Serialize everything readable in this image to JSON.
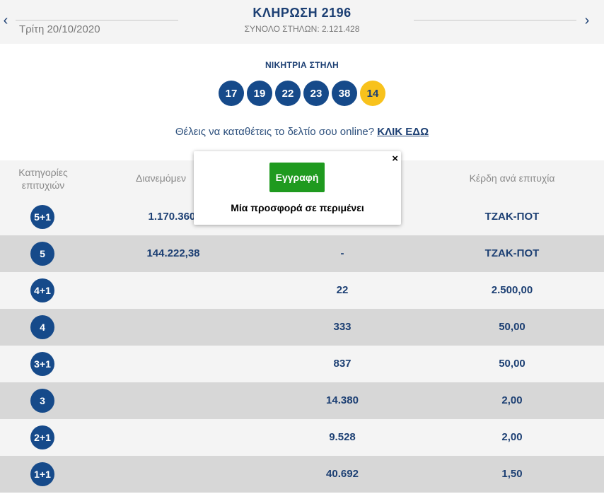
{
  "header": {
    "prev_icon": "chevron-left-icon",
    "next_icon": "chevron-right-icon",
    "date": "Τρίτη 20/10/2020",
    "draw_title": "ΚΛΗΡΩΣΗ 2196",
    "total_columns": "ΣΥΝΟΛΟ ΣΤΗΛΩΝ: 2.121.428"
  },
  "winning": {
    "label": "ΝΙΚΗΤΡΙΑ ΣΤΗΛΗ",
    "numbers": [
      "17",
      "19",
      "22",
      "23",
      "38"
    ],
    "joker": "14"
  },
  "online": {
    "text": "Θέλεις να καταθέτεις το δελτίο σου online?",
    "link": "ΚΛΙΚ ΕΔΩ"
  },
  "table": {
    "headers": {
      "categories": "Κατηγορίες επιτυχιών",
      "distributed": "Διανεμόμεν",
      "per_win": "Κέρδη ανά επιτυχία"
    },
    "rows": [
      {
        "cat": "5+1",
        "distributed": "1.170.360,",
        "winners": "",
        "prize": "ΤΖΑΚ-ΠΟΤ"
      },
      {
        "cat": "5",
        "distributed": "144.222,38",
        "winners": "-",
        "prize": "ΤΖΑΚ-ΠΟΤ"
      },
      {
        "cat": "4+1",
        "distributed": "",
        "winners": "22",
        "prize": "2.500,00"
      },
      {
        "cat": "4",
        "distributed": "",
        "winners": "333",
        "prize": "50,00"
      },
      {
        "cat": "3+1",
        "distributed": "",
        "winners": "837",
        "prize": "50,00"
      },
      {
        "cat": "3",
        "distributed": "",
        "winners": "14.380",
        "prize": "2,00"
      },
      {
        "cat": "2+1",
        "distributed": "",
        "winners": "9.528",
        "prize": "2,00"
      },
      {
        "cat": "1+1",
        "distributed": "",
        "winners": "40.692",
        "prize": "1,50"
      }
    ]
  },
  "popup": {
    "close": "×",
    "button": "Εγγραφή",
    "text": "Μία προσφορά σε περιμένει"
  },
  "colors": {
    "navy": "#164a8a",
    "joker_yellow": "#f8c21c",
    "green": "#1f9a1f"
  }
}
